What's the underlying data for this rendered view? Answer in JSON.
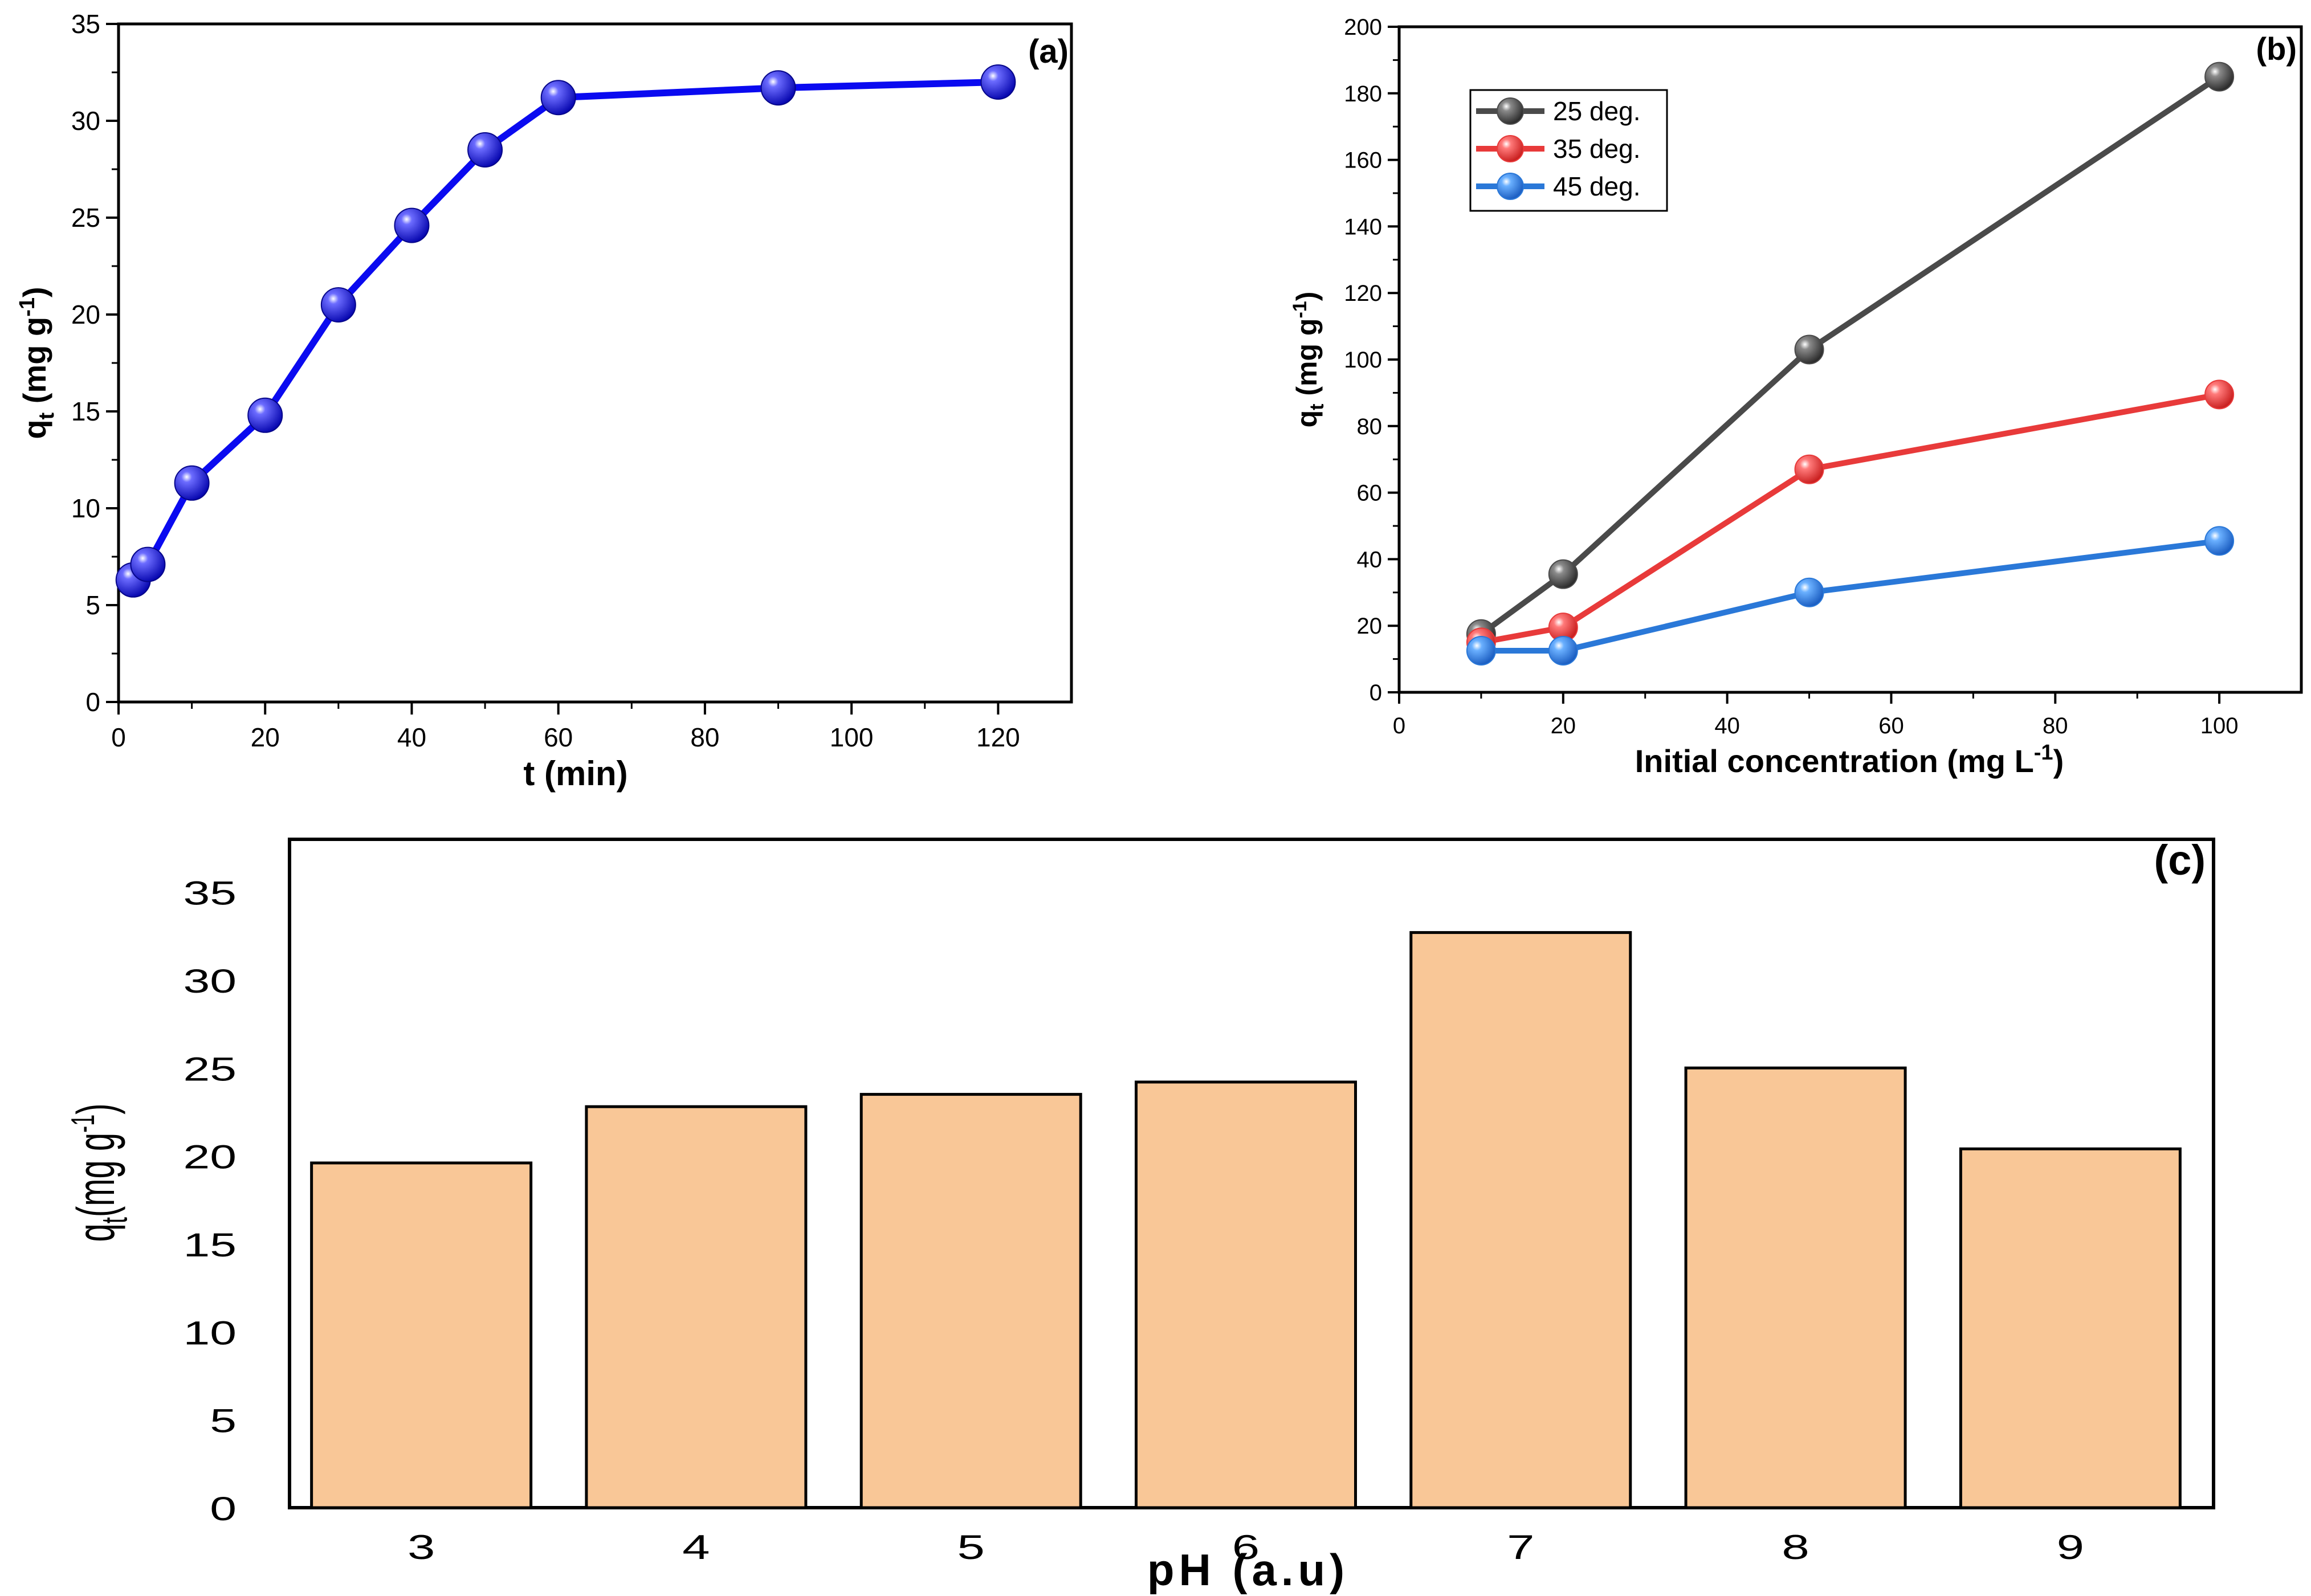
{
  "colors": {
    "series_a": "#0a0af0",
    "series_a_marker": "#2a2ae8",
    "s25": "#4a4a4a",
    "s35": "#e83a3a",
    "s45": "#2a78d8",
    "bar_fill": "#f9c797",
    "axis": "#000000"
  },
  "chart_data": [
    {
      "id": "a",
      "type": "line",
      "panel_label": "(a)",
      "xlabel": "t (min)",
      "ylabel_main": "q",
      "ylabel_sub": "t",
      "ylabel_rest": " (mg g",
      "ylabel_sup": "-1",
      "ylabel_end": ")",
      "xlim": [
        0,
        130
      ],
      "ylim": [
        0,
        35
      ],
      "xticks": [
        0,
        20,
        40,
        60,
        80,
        100,
        120
      ],
      "yticks": [
        0,
        5,
        10,
        15,
        20,
        25,
        30,
        35
      ],
      "series": [
        {
          "name": "qt",
          "x": [
            2,
            4,
            10,
            20,
            30,
            40,
            50,
            60,
            90,
            120
          ],
          "y": [
            6.3,
            7.1,
            11.3,
            14.8,
            20.5,
            24.6,
            28.5,
            31.2,
            31.7,
            32.0
          ]
        }
      ]
    },
    {
      "id": "b",
      "type": "line",
      "panel_label": "(b)",
      "xlabel_main": "Initial concentration (mg L",
      "xlabel_sup": "-1",
      "xlabel_end": ")",
      "ylabel_main": "q",
      "ylabel_sub": "t",
      "ylabel_rest": " (mg g",
      "ylabel_sup": "-1",
      "ylabel_end": ")",
      "xlim": [
        0,
        110
      ],
      "ylim": [
        0,
        200
      ],
      "xticks": [
        0,
        20,
        40,
        60,
        80,
        100
      ],
      "yticks": [
        0,
        20,
        40,
        60,
        80,
        100,
        120,
        140,
        160,
        180,
        200
      ],
      "legend_position": "top-left",
      "series": [
        {
          "name": "25 deg.",
          "x": [
            10,
            20,
            50,
            100
          ],
          "y": [
            17.5,
            35.5,
            103,
            185
          ]
        },
        {
          "name": "35 deg.",
          "x": [
            10,
            20,
            50,
            100
          ],
          "y": [
            15,
            19.5,
            67,
            89.5
          ]
        },
        {
          "name": "45 deg.",
          "x": [
            10,
            20,
            50,
            100
          ],
          "y": [
            12.5,
            12.5,
            30,
            45.5
          ]
        }
      ]
    },
    {
      "id": "c",
      "type": "bar",
      "panel_label": "(c)",
      "xlabel": "pH (a.u)",
      "ylabel_main": "q",
      "ylabel_sub": "t",
      "ylabel_rest": "(mg g",
      "ylabel_sup": "-1",
      "ylabel_end": ")",
      "ylim": [
        0,
        38
      ],
      "yticks": [
        0,
        5,
        10,
        15,
        20,
        25,
        30,
        35
      ],
      "categories": [
        "3",
        "4",
        "5",
        "6",
        "7",
        "8",
        "9"
      ],
      "values": [
        19.6,
        22.8,
        23.5,
        24.2,
        32.7,
        25.0,
        20.4
      ]
    }
  ]
}
